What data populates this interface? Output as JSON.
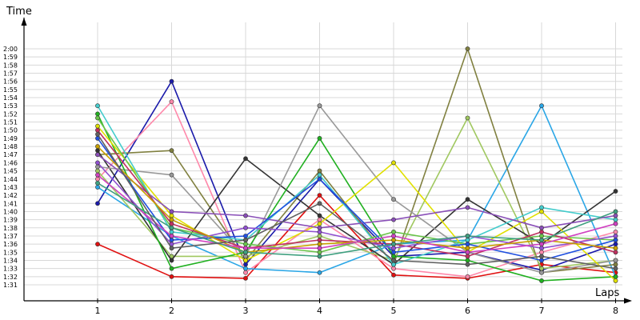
{
  "chart_data": {
    "type": "line",
    "ylabel": "Time",
    "xlabel": "Laps",
    "x": [
      1,
      2,
      3,
      4,
      5,
      6,
      7,
      8
    ],
    "ylim": [
      90.5,
      120.5
    ],
    "ytick_values": [
      91,
      92,
      93,
      94,
      95,
      96,
      97,
      98,
      99,
      100,
      101,
      102,
      103,
      104,
      105,
      106,
      107,
      108,
      109,
      110,
      111,
      112,
      113,
      114,
      115,
      116,
      117,
      118,
      119,
      120
    ],
    "ytick_labels": [
      "1:31",
      "1:32",
      "1:33",
      "1:34",
      "1:35",
      "1:36",
      "1:37",
      "1:38",
      "1:39",
      "1:40",
      "1:41",
      "1:42",
      "1:43",
      "1:44",
      "1:45",
      "1:46",
      "1:47",
      "1:48",
      "1:49",
      "1:50",
      "1:51",
      "1:52",
      "1:53",
      "1:54",
      "1:55",
      "1:56",
      "1:57",
      "1:58",
      "1:59",
      "2:00"
    ],
    "xtick_labels": [
      "1",
      "2",
      "3",
      "4",
      "5",
      "6",
      "7",
      "8"
    ],
    "grid": true,
    "series": [
      {
        "color": "#e01010",
        "values": [
          96.0,
          92.0,
          91.8,
          102.0,
          92.2,
          91.8,
          93.5,
          92.5
        ]
      },
      {
        "color": "#1a1aaa",
        "values": [
          101.0,
          116.0,
          93.5,
          104.0,
          94.5,
          95.0,
          92.8,
          96.0
        ]
      },
      {
        "color": "#ff88aa",
        "values": [
          104.0,
          113.5,
          92.5,
          99.0,
          93.0,
          92.0,
          95.0,
          97.5
        ]
      },
      {
        "color": "#2aa6e6",
        "values": [
          103.0,
          97.0,
          93.0,
          92.5,
          96.0,
          96.5,
          113.0,
          92.0
        ]
      },
      {
        "color": "#808040",
        "values": [
          107.0,
          107.5,
          94.0,
          105.0,
          93.5,
          120.0,
          92.5,
          93.5
        ]
      },
      {
        "color": "#a0c860",
        "values": [
          105.0,
          94.5,
          94.5,
          97.0,
          94.0,
          111.5,
          93.0,
          94.0
        ]
      },
      {
        "color": "#333333",
        "values": [
          107.5,
          94.0,
          106.5,
          99.5,
          93.5,
          101.5,
          96.0,
          102.5
        ]
      },
      {
        "color": "#999999",
        "values": [
          105.5,
          104.5,
          94.5,
          113.0,
          101.5,
          95.0,
          92.5,
          94.0
        ]
      },
      {
        "color": "#20b020",
        "values": [
          112.0,
          93.0,
          95.0,
          109.0,
          94.5,
          94.0,
          91.5,
          92.0
        ]
      },
      {
        "color": "#e0e000",
        "values": [
          110.5,
          99.5,
          94.0,
          98.5,
          106.0,
          95.0,
          100.0,
          91.5
        ]
      },
      {
        "color": "#44cccc",
        "values": [
          113.0,
          97.5,
          96.5,
          104.5,
          93.5,
          96.5,
          100.5,
          99.0
        ]
      },
      {
        "color": "#8a4fb8",
        "values": [
          107.0,
          100.0,
          99.5,
          98.0,
          99.0,
          100.5,
          98.0,
          99.5
        ]
      },
      {
        "color": "#6ac44a",
        "values": [
          111.5,
          98.0,
          96.0,
          95.0,
          97.5,
          96.0,
          97.0,
          96.5
        ]
      },
      {
        "color": "#c03060",
        "values": [
          110.0,
          98.5,
          95.5,
          96.5,
          96.0,
          94.5,
          97.5,
          95.0
        ]
      },
      {
        "color": "#2050e0",
        "values": [
          109.0,
          96.5,
          97.0,
          104.0,
          95.0,
          96.0,
          94.0,
          96.5
        ]
      },
      {
        "color": "#9050d0",
        "values": [
          106.0,
          96.0,
          98.0,
          97.5,
          95.5,
          97.0,
          95.5,
          97.0
        ]
      },
      {
        "color": "#c8a000",
        "values": [
          108.0,
          99.0,
          95.0,
          96.0,
          96.5,
          95.5,
          96.5,
          95.5
        ]
      },
      {
        "color": "#d040c0",
        "values": [
          104.5,
          97.0,
          95.5,
          95.5,
          97.0,
          95.0,
          96.0,
          98.5
        ]
      },
      {
        "color": "#40a080",
        "values": [
          103.5,
          98.0,
          95.0,
          94.5,
          96.0,
          97.0,
          96.5,
          100.0
        ]
      },
      {
        "color": "#606060",
        "values": [
          109.5,
          95.5,
          96.5,
          101.0,
          94.0,
          93.5,
          94.5,
          93.0
        ]
      }
    ]
  }
}
